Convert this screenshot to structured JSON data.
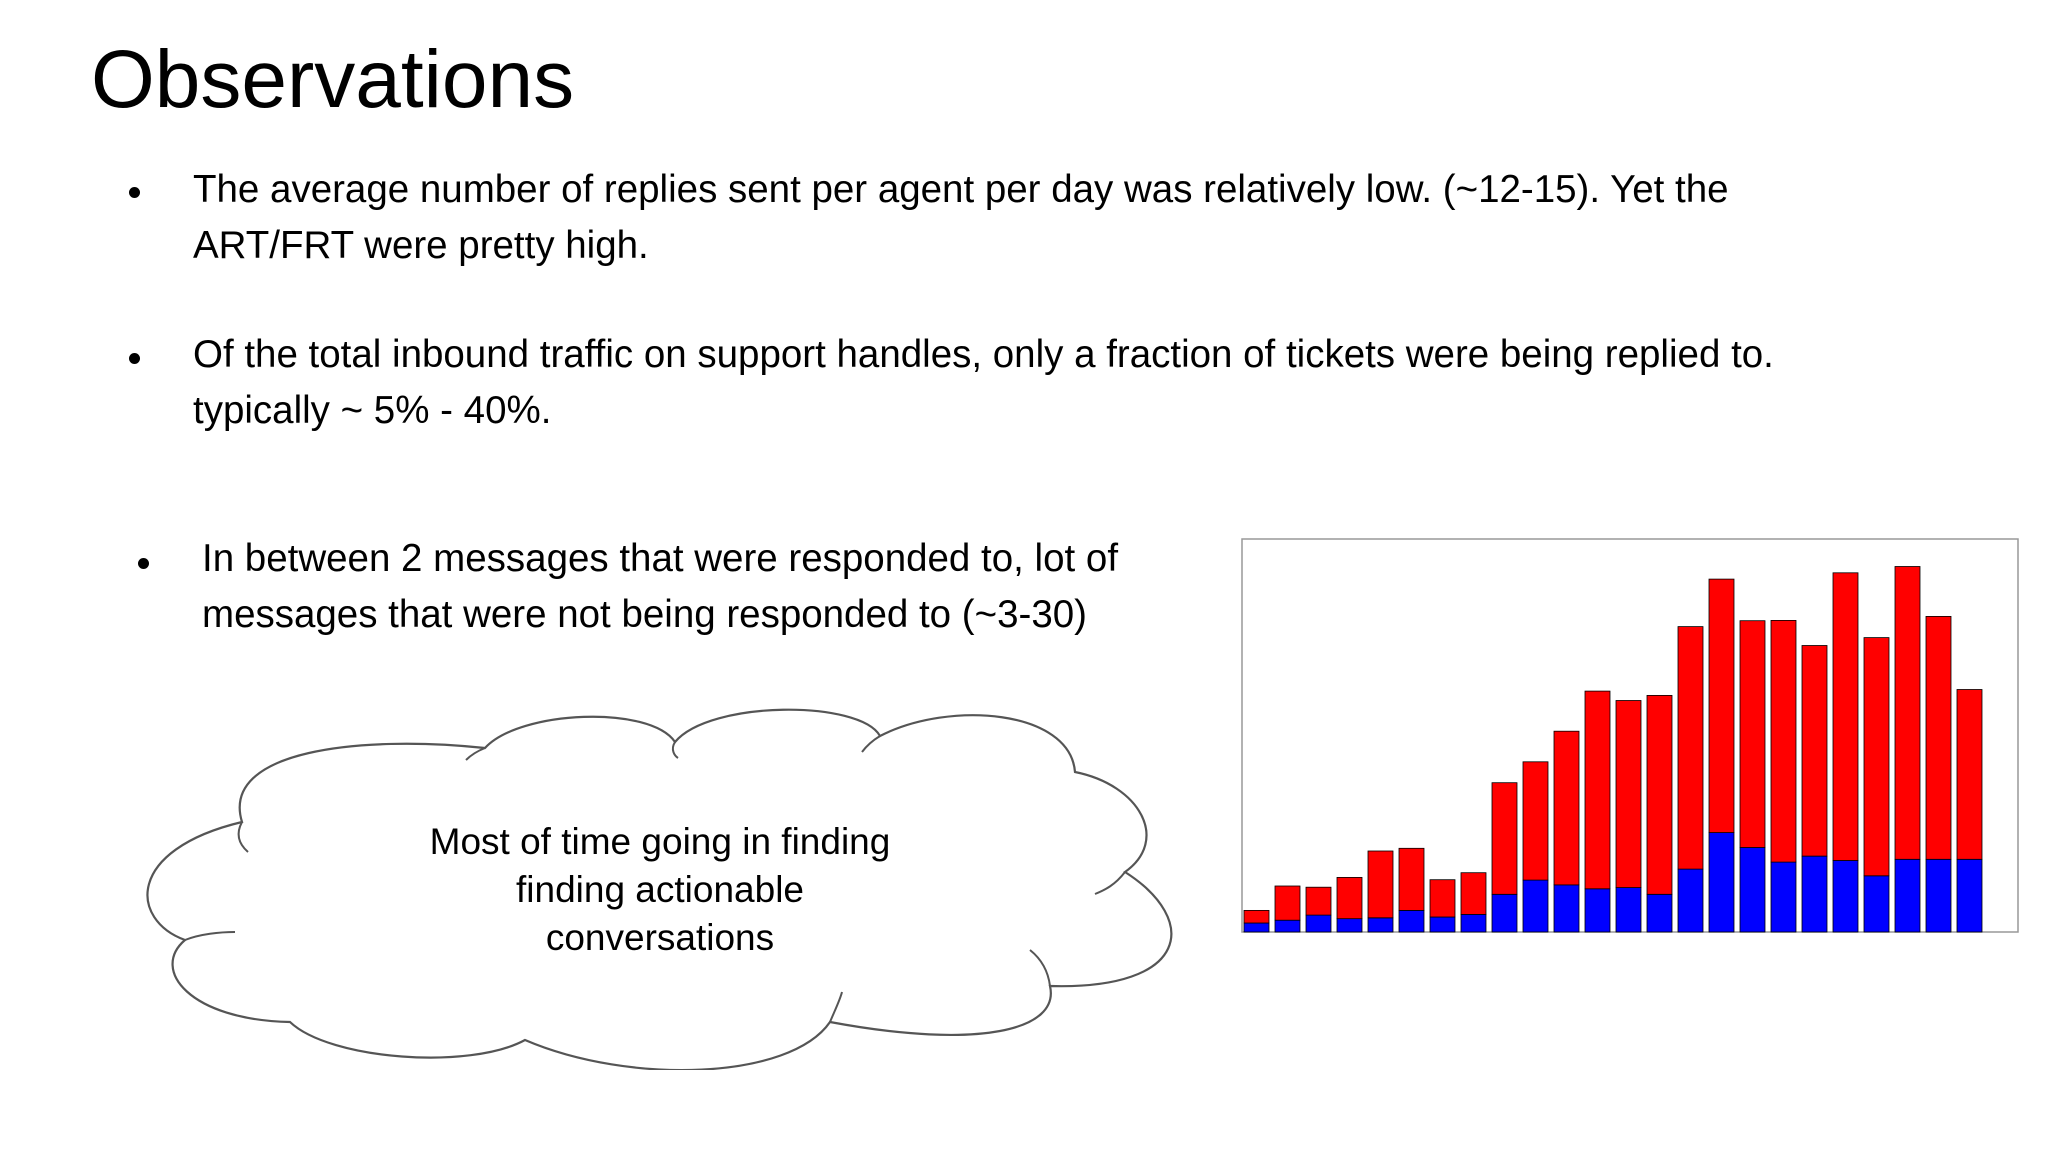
{
  "slide": {
    "title": "Observations",
    "bullets": [
      "The average number of replies sent per agent per day was relatively low. (~12-15). Yet the ART/FRT were pretty high.",
      "Of the total inbound traffic on support handles, only a fraction of tickets were being replied to. typically ~ 5% - 40%.",
      "In between 2 messages that were responded to,  lot of messages that were not being responded to (~3-30)"
    ],
    "cloud_text": "Most of time going in finding finding actionable conversations"
  },
  "colors": {
    "text": "#000000",
    "series_red": "#ff0000",
    "series_blue": "#0000ff",
    "cloud_stroke": "#555555"
  },
  "chart_data": {
    "type": "bar",
    "stacked": true,
    "x": [
      1,
      2,
      3,
      4,
      5,
      6,
      7,
      8,
      9,
      10,
      11,
      12,
      13,
      14,
      15,
      16,
      17,
      18,
      19,
      20,
      21,
      22,
      23,
      24
    ],
    "ylim": [
      0,
      100
    ],
    "series": [
      {
        "color": "#0000ff",
        "values": [
          2.3,
          3.0,
          4.3,
          3.4,
          3.6,
          5.5,
          3.8,
          4.5,
          9.6,
          13.2,
          12.0,
          11.0,
          11.3,
          9.6,
          16.0,
          25.3,
          21.5,
          17.8,
          19.3,
          18.2,
          14.3,
          18.5,
          18.5,
          18.5
        ]
      },
      {
        "color": "#ff0000",
        "values": [
          3.2,
          8.7,
          7.1,
          10.5,
          17.0,
          15.8,
          9.5,
          10.6,
          28.4,
          30.1,
          39.1,
          50.3,
          47.6,
          50.6,
          61.7,
          64.5,
          57.7,
          61.5,
          53.6,
          73.2,
          60.6,
          74.5,
          61.8,
          43.2
        ]
      }
    ],
    "grid": false,
    "legend": "none"
  }
}
